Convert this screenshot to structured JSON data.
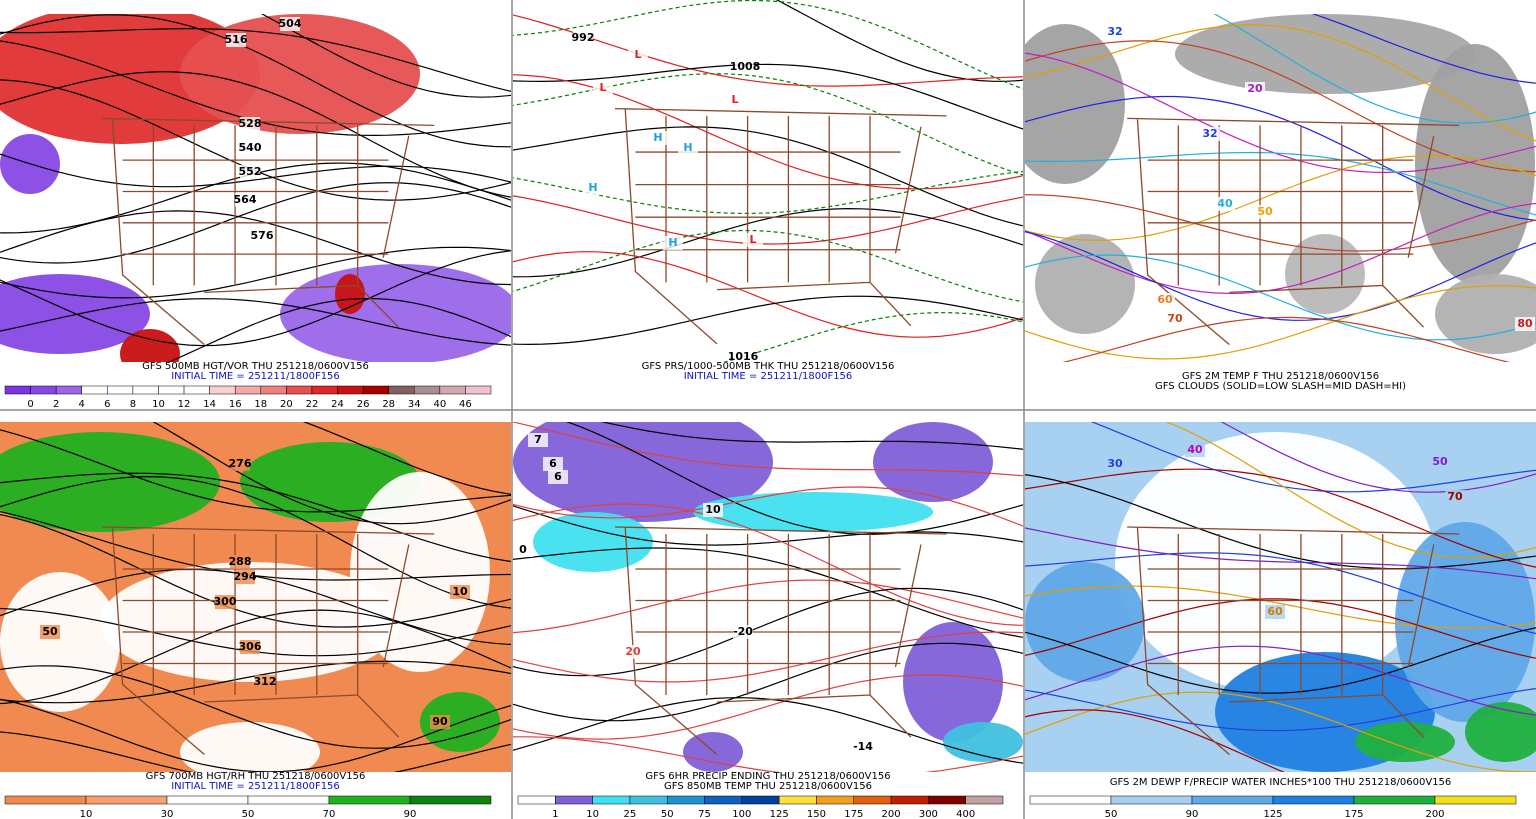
{
  "panels": [
    {
      "captions": [
        {
          "text": "GFS 500MB HGT/VOR THU 251218/0600V156",
          "color": "#000000"
        },
        {
          "text": "INITIAL TIME = 251211/1800F156",
          "color": "#1010c0"
        }
      ],
      "colorbar": {
        "labels": [
          0,
          2,
          4,
          6,
          8,
          10,
          12,
          14,
          16,
          18,
          20,
          22,
          24,
          26,
          28,
          34,
          40,
          46
        ],
        "colors": [
          "#7a35e0",
          "#8848e4",
          "#9a66ea",
          "#ffffff",
          "#ffffff",
          "#ffffff",
          "#ffffff",
          "#ffffff",
          "#f8d0d0",
          "#f4a8a8",
          "#ee8080",
          "#e65050",
          "#dc2828",
          "#c81010",
          "#a80000",
          "#806060",
          "#a89090",
          "#d0a8b0",
          "#f0c0d0"
        ]
      },
      "map_labels": [
        "504",
        "516",
        "528",
        "540",
        "552",
        "564",
        "576"
      ]
    },
    {
      "captions": [
        {
          "text": "GFS PRS/1000-500MB THK THU 251218/0600V156",
          "color": "#000000"
        },
        {
          "text": "INITIAL TIME = 251211/1800F156",
          "color": "#1010c0"
        }
      ],
      "map_labels": [
        "992",
        "L",
        "L",
        "L",
        "H",
        "H",
        "H",
        "H",
        "1008",
        "1016",
        "L"
      ]
    },
    {
      "captions": [
        {
          "text": "GFS 2M TEMP F THU 251218/0600V156",
          "color": "#000000"
        },
        {
          "text": "GFS CLOUDS (SOLID=LOW SLASH=MID DASH=HI)",
          "color": "#000000"
        }
      ],
      "map_labels": [
        "32",
        "32",
        "40",
        "50",
        "60",
        "70",
        "80",
        "20"
      ]
    },
    {
      "captions": [
        {
          "text": "GFS 700MB HGT/RH THU 251218/0600V156",
          "color": "#000000"
        },
        {
          "text": "INITIAL TIME = 251211/1800F156",
          "color": "#1010c0"
        }
      ],
      "colorbar": {
        "labels": [
          10,
          30,
          50,
          70,
          90
        ],
        "colors": [
          "#f08a50",
          "#f4a070",
          "#ffffff",
          "#ffffff",
          "#20b020",
          "#108010"
        ]
      },
      "map_labels": [
        "276",
        "288",
        "294",
        "300",
        "306",
        "312",
        "10",
        "50",
        "90"
      ]
    },
    {
      "captions": [
        {
          "text": "GFS 6HR PRECIP ENDING THU 251218/0600V156",
          "color": "#000000"
        },
        {
          "text": "GFS 850MB TEMP THU 251218/0600V156",
          "color": "#000000"
        }
      ],
      "colorbar": {
        "labels": [
          1,
          10,
          25,
          50,
          75,
          100,
          125,
          150,
          175,
          200,
          300,
          400
        ],
        "colors": [
          "#ffffff",
          "#8060d8",
          "#40e0f0",
          "#40c0e0",
          "#2090d0",
          "#1060c0",
          "#0040a0",
          "#ffe040",
          "#f0a020",
          "#e06010",
          "#c02000",
          "#800000",
          "#c0a0a0"
        ]
      },
      "map_labels": [
        "7",
        "6",
        "6",
        "0",
        "10",
        "20",
        "-20",
        "-14"
      ]
    },
    {
      "captions": [
        {
          "text": "GFS 2M DEWP F/PRECIP WATER INCHES*100 THU 251218/0600V156",
          "color": "#000000"
        }
      ],
      "colorbar": {
        "labels": [
          50,
          90,
          125,
          175,
          200
        ],
        "colors": [
          "#ffffff",
          "#a8d0f0",
          "#60a8e8",
          "#2080e0",
          "#20b040",
          "#f0e020"
        ]
      },
      "map_labels": [
        "30",
        "40",
        "50",
        "60",
        "70"
      ]
    }
  ]
}
